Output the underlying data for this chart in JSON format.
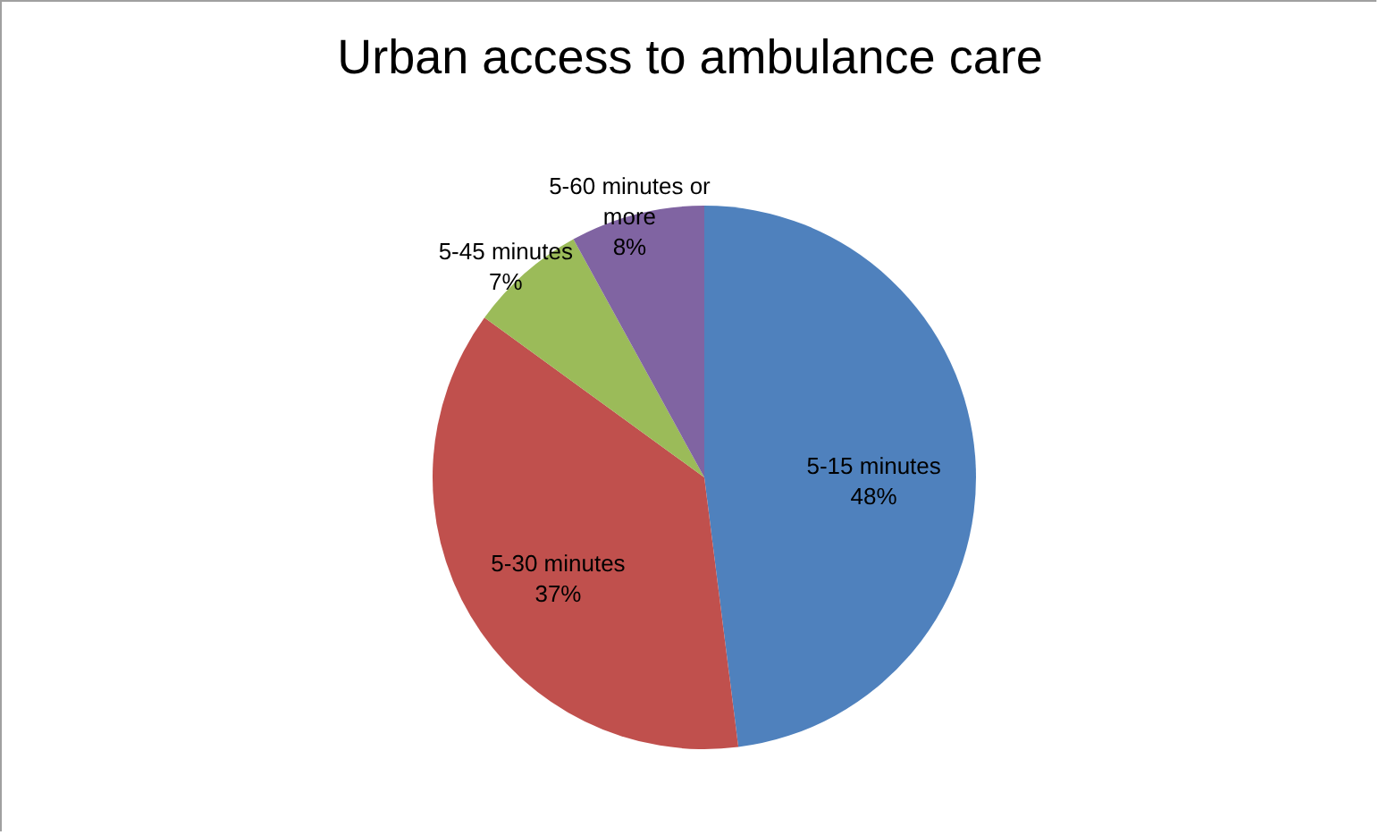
{
  "chart_data": {
    "type": "pie",
    "title": "Urban access to ambulance care",
    "categories": [
      "5-15 minutes",
      "5-30 minutes",
      "5-45 minutes",
      "5-60 minutes or more"
    ],
    "values": [
      48,
      37,
      7,
      8
    ],
    "value_labels": [
      "48%",
      "37%",
      "7%",
      "8%"
    ],
    "colors": [
      "#4f81bd",
      "#c0504d",
      "#9bbb59",
      "#8064a2"
    ]
  }
}
